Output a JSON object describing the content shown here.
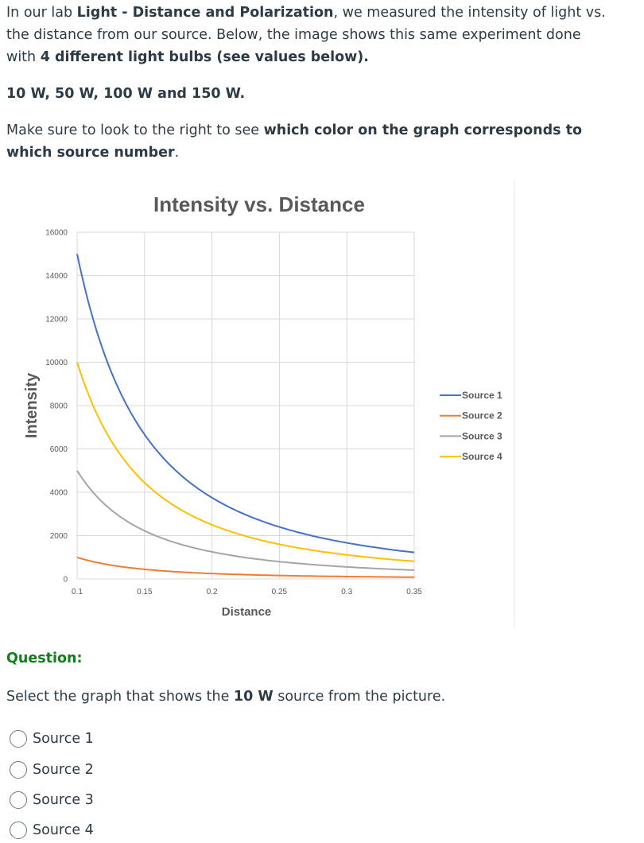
{
  "intro": {
    "p1_a": "In our lab ",
    "p1_b": "Light - Distance and Polarization",
    "p1_c": ", we measured the intensity of light vs. the distance from our source.  Below, the image shows this same experiment done with ",
    "p1_d": "4 different light bulbs (see values below).",
    "p2": "10 W, 50 W, 100 W and 150 W.",
    "p3_a": "Make sure to look to the right to see ",
    "p3_b": "which color on the graph corresponds to which source number",
    "p3_c": "."
  },
  "chart_data": {
    "type": "line",
    "title": "Intensity vs. Distance",
    "xlabel": "Distance",
    "ylabel": "Intensity",
    "xlim": [
      0.1,
      0.35
    ],
    "ylim": [
      0,
      16000
    ],
    "x_ticks": [
      "0.1",
      "0.15",
      "0.2",
      "0.25",
      "0.3",
      "0.35"
    ],
    "y_ticks": [
      "0",
      "2000",
      "4000",
      "6000",
      "8000",
      "10000",
      "12000",
      "14000",
      "16000"
    ],
    "grid": true,
    "legend_position": "right",
    "x": [
      0.1,
      0.12,
      0.14,
      0.15,
      0.16,
      0.18,
      0.2,
      0.22,
      0.24,
      0.25,
      0.26,
      0.28,
      0.3,
      0.32,
      0.34,
      0.35
    ],
    "series": [
      {
        "name": "Source 1",
        "color": "#4472c4",
        "values": [
          15000,
          10417,
          7653,
          6667,
          5859,
          4630,
          3750,
          3099,
          2604,
          2400,
          2219,
          1913,
          1667,
          1465,
          1298,
          1224
        ]
      },
      {
        "name": "Source 2",
        "color": "#ed7d31",
        "values": [
          1000,
          694,
          510,
          444,
          391,
          309,
          250,
          207,
          174,
          160,
          148,
          128,
          111,
          98,
          87,
          82
        ]
      },
      {
        "name": "Source 3",
        "color": "#a5a5a5",
        "values": [
          5000,
          3472,
          2551,
          2222,
          1953,
          1543,
          1250,
          1033,
          868,
          800,
          740,
          638,
          556,
          488,
          433,
          408
        ]
      },
      {
        "name": "Source 4",
        "color": "#ffc000",
        "values": [
          10000,
          6944,
          5102,
          4444,
          3906,
          3086,
          2500,
          2066,
          1736,
          1600,
          1479,
          1276,
          1111,
          977,
          865,
          816
        ]
      }
    ]
  },
  "question": {
    "label": "Question:",
    "text_a": "Select the graph that shows the ",
    "text_b": "10 W",
    "text_c": " source from the picture.",
    "options": [
      "Source 1",
      "Source 2",
      "Source 3",
      "Source 4"
    ]
  }
}
